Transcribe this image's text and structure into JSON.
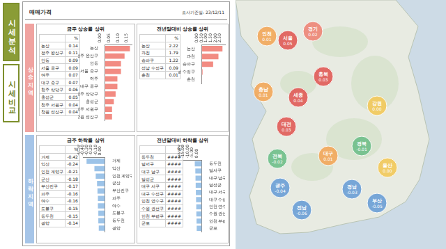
{
  "sidebar": {
    "tabs": [
      "시세분석",
      "시세비교"
    ]
  },
  "header": {
    "title": "매매가격",
    "date": "조사기준일: 23/12/11"
  },
  "sections": [
    "상승지역",
    "하락지역"
  ],
  "chart_data": [
    {
      "type": "bar",
      "title": "금주 상승률 상위",
      "orientation": "horizontal",
      "grid": false,
      "color": "#f28b82",
      "categories": [
        "논산",
        "전주 완산구",
        "안동",
        "서울 중구",
        "여주",
        "대구 중구",
        "청주 상당구",
        "홍성군",
        "청주 서원구",
        "창원 성산구"
      ],
      "values": [
        0.14,
        0.11,
        0.09,
        0.09,
        0.07,
        0.07,
        0.06,
        0.05,
        0.04,
        0.04
      ],
      "xlim": [
        0,
        0.15
      ],
      "xticks": [
        {
          "value": 0,
          "label": "0.00"
        },
        {
          "value": 0.05,
          "label": "0.05"
        },
        {
          "value": 0.1,
          "label": "0.10"
        },
        {
          "value": 0.15,
          "label": "0.15"
        }
      ],
      "table": {
        "header": "%",
        "values": [
          "0.14",
          "0.11",
          "0.09",
          "0.09",
          "0.07",
          "0.07",
          "0.06",
          "0.05",
          "0.04",
          "0.04"
        ]
      }
    },
    {
      "type": "bar",
      "title": "전년말대비 상승률 상위",
      "orientation": "horizontal",
      "grid": false,
      "color": "#f28b82",
      "categories": [
        "논산",
        "과천",
        "송파구",
        "성남 수정구",
        "춘천"
      ],
      "values": [
        2.22,
        1.79,
        1.22,
        0.09,
        0.01
      ],
      "xlim": [
        0,
        2.5
      ],
      "xticks": [
        {
          "value": 0,
          "label": "0.00"
        },
        {
          "value": 0.5,
          "label": "0.50"
        },
        {
          "value": 1,
          "label": "1.00"
        },
        {
          "value": 1.5,
          "label": "1.50"
        },
        {
          "value": 2,
          "label": "2.00"
        },
        {
          "value": 2.5,
          "label": "2.50"
        }
      ],
      "table": {
        "header": "%",
        "values": [
          "2.22",
          "1.79",
          "1.22",
          "0.09",
          "0.01"
        ]
      }
    },
    {
      "type": "bar",
      "title": "금주 하락률 상위",
      "orientation": "horizontal",
      "grid": false,
      "color": "#9cc3e8",
      "categories": [
        "거제",
        "익산",
        "인천 계양구",
        "군산",
        "부산진구",
        "파주",
        "여수",
        "도봉구",
        "동두천",
        "광양"
      ],
      "values": [
        -0.42,
        -0.24,
        -0.21,
        -0.18,
        -0.17,
        -0.16,
        -0.16,
        -0.15,
        -0.15,
        -0.14
      ],
      "xlim": [
        -0.5,
        0
      ],
      "xticks": [
        {
          "value": -0.5,
          "label": "-0.50"
        },
        {
          "value": -0.4,
          "label": "-0.40"
        },
        {
          "value": -0.3,
          "label": "-0.30"
        },
        {
          "value": -0.2,
          "label": "-0.20"
        },
        {
          "value": -0.1,
          "label": "-0.10"
        },
        {
          "value": 0,
          "label": "0.00"
        }
      ],
      "table": {
        "header": "%",
        "values": [
          "-0.42",
          "-0.24",
          "-0.21",
          "-0.18",
          "-0.17",
          "-0.16",
          "-0.16",
          "-0.15",
          "-0.15",
          "-0.14"
        ]
      }
    },
    {
      "type": "bar",
      "title": "전년말대비 하락률 상위",
      "orientation": "horizontal",
      "grid": false,
      "color": "#9cc3e8",
      "categories": [
        "동두천",
        "달서구",
        "대구 남구",
        "달성군",
        "대구 서구",
        "대구 수성구",
        "인천 연수구",
        "수원 권선구",
        "인천 부평구",
        "군포"
      ],
      "values": [
        -7.6,
        -7.0,
        -6.8,
        -6.6,
        -6.4,
        -6.2,
        -6.0,
        -5.9,
        -5.7,
        -5.5
      ],
      "xlim": [
        -20,
        0
      ],
      "xticks": [
        {
          "value": -20,
          "label": "-20.00"
        },
        {
          "value": -15,
          "label": "-15.00"
        },
        {
          "value": -10,
          "label": "-10.00"
        },
        {
          "value": -5,
          "label": "-5.00"
        },
        {
          "value": 0,
          "label": "0.00"
        }
      ],
      "table": {
        "header": "%",
        "values": [
          "####",
          "####",
          "####",
          "####",
          "####",
          "####",
          "####",
          "####",
          "####",
          "####"
        ]
      }
    }
  ],
  "map": {
    "markers": [
      {
        "name": "인천",
        "label": "0.01",
        "color": "#f3a85a"
      },
      {
        "name": "서울",
        "label": "0.05",
        "color": "#e15b57"
      },
      {
        "name": "경기",
        "label": "0.02",
        "color": "#ee8677"
      },
      {
        "name": "충북",
        "label": "0.03",
        "color": "#e15b57"
      },
      {
        "name": "충남",
        "label": "0.01",
        "color": "#f3a85a"
      },
      {
        "name": "세종",
        "label": "0.04",
        "color": "#e15b57"
      },
      {
        "name": "대전",
        "label": "0.03",
        "color": "#e15b57"
      },
      {
        "name": "강원",
        "label": "0.00",
        "color": "#f3c95a"
      },
      {
        "name": "경북",
        "label": "-0.01",
        "color": "#6fbf8a"
      },
      {
        "name": "대구",
        "label": "0.01",
        "color": "#f3a85a"
      },
      {
        "name": "전북",
        "label": "-0.02",
        "color": "#6fbf8a"
      },
      {
        "name": "울산",
        "label": "0.00",
        "color": "#f3c95a"
      },
      {
        "name": "광주",
        "label": "-0.04",
        "color": "#6b9fd6"
      },
      {
        "name": "경남",
        "label": "-0.03",
        "color": "#6b9fd6"
      },
      {
        "name": "부산",
        "label": "-0.05",
        "color": "#6b9fd6"
      },
      {
        "name": "전남",
        "label": "-0.06",
        "color": "#6b9fd6"
      }
    ]
  }
}
